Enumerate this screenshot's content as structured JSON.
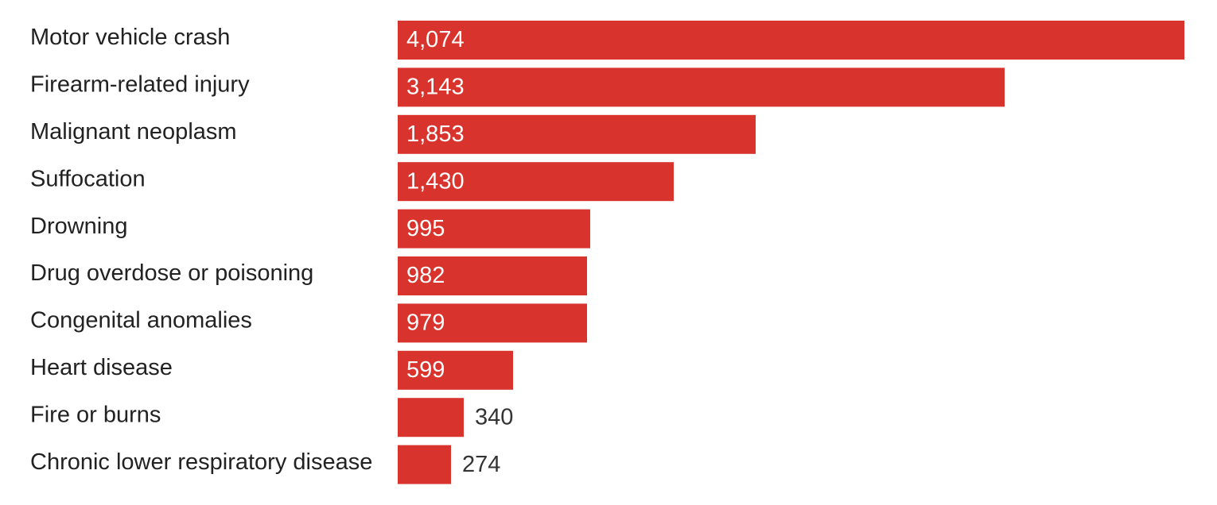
{
  "chart_data": {
    "type": "bar",
    "orientation": "horizontal",
    "categories": [
      "Motor vehicle crash",
      "Firearm-related injury",
      "Malignant neoplasm",
      "Suffocation",
      "Drowning",
      "Drug overdose or poisoning",
      "Congenital anomalies",
      "Heart disease",
      "Fire or burns",
      "Chronic lower respiratory disease"
    ],
    "values": [
      4074,
      3143,
      1853,
      1430,
      995,
      982,
      979,
      599,
      340,
      274
    ],
    "value_labels": [
      "4,074",
      "3,143",
      "1,853",
      "1,430",
      "995",
      "982",
      "979",
      "599",
      "340",
      "274"
    ],
    "xlim": [
      0,
      4074
    ],
    "grid": false,
    "legend": "none",
    "colors": {
      "bar": "#d8332c",
      "label_inside": "#ffffff",
      "label_outside": "#333333",
      "category_text": "#222222"
    }
  }
}
